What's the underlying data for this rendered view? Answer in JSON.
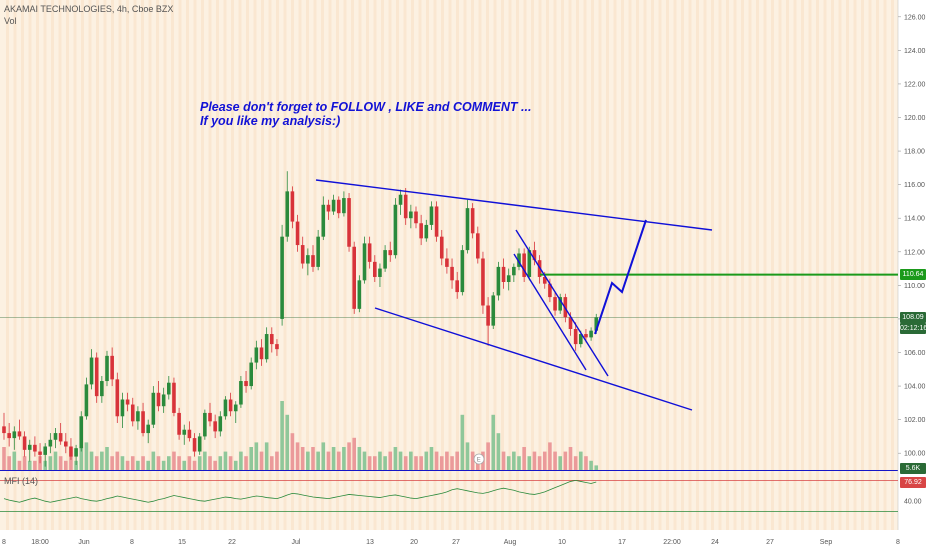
{
  "header": {
    "title": "AKAMAI TECHNOLOGIES, 4h, Cboe BZX",
    "vol_label": "Vol"
  },
  "annotation": {
    "line1": "Please don't forget  to FOLLOW , LIKE and COMMENT ...",
    "line2": "If you like my analysis:)"
  },
  "mfi": {
    "label": "MFI (14)",
    "value": "76.92",
    "level_label": "40.00"
  },
  "price_axis": {
    "ticks": [
      "126.00",
      "124.00",
      "122.00",
      "120.00",
      "118.00",
      "116.00",
      "114.00",
      "112.00",
      "110.00",
      "108.00",
      "106.00",
      "104.00",
      "102.00",
      "100.00"
    ]
  },
  "badges": {
    "resistance": {
      "text": "110.64",
      "color": "#1b9a1b"
    },
    "current": {
      "text": "108.09",
      "color": "#2a6a36"
    },
    "countdown": {
      "text": "02:12:16",
      "color": "#2a6a36"
    },
    "volume": {
      "text": "5.6K",
      "color": "#2a6a36"
    }
  },
  "time_axis": {
    "labels": [
      "8",
      "18:00",
      "Jun",
      "8",
      "15",
      "22",
      "Jul",
      "13",
      "20",
      "27",
      "Aug",
      "10",
      "17",
      "22:00",
      "24",
      "27",
      "Sep",
      "8"
    ]
  },
  "colors": {
    "up": "#2a8a3c",
    "down": "#d8333a",
    "trend": "#1010d8",
    "level": "#1b9a1b",
    "vol_up": "#8fc79a",
    "vol_down": "#eb9a9a"
  },
  "chart_data": {
    "type": "candlestick",
    "ylim": [
      99,
      127
    ],
    "resistance_level": 110.64,
    "current_price": 108.09,
    "candles": [
      [
        101.6,
        102.4,
        100.8,
        101.2
      ],
      [
        101.2,
        101.8,
        100.4,
        100.9
      ],
      [
        100.9,
        101.6,
        100.2,
        101.3
      ],
      [
        101.3,
        102.0,
        100.8,
        101.0
      ],
      [
        101.0,
        101.3,
        99.8,
        100.2
      ],
      [
        100.2,
        100.8,
        99.5,
        100.5
      ],
      [
        100.5,
        101.0,
        99.8,
        100.1
      ],
      [
        100.1,
        100.6,
        99.4,
        99.9
      ],
      [
        99.9,
        100.6,
        99.2,
        100.4
      ],
      [
        100.4,
        101.2,
        100.0,
        100.8
      ],
      [
        100.8,
        101.5,
        100.3,
        101.2
      ],
      [
        101.2,
        101.8,
        100.5,
        100.7
      ],
      [
        100.7,
        101.2,
        100.0,
        100.4
      ],
      [
        100.4,
        100.9,
        99.6,
        99.8
      ],
      [
        99.8,
        100.5,
        99.3,
        100.3
      ],
      [
        100.3,
        102.5,
        100.1,
        102.2
      ],
      [
        102.2,
        104.5,
        102.0,
        104.1
      ],
      [
        104.1,
        106.2,
        103.8,
        105.7
      ],
      [
        105.7,
        106.0,
        103.0,
        103.4
      ],
      [
        103.4,
        104.6,
        103.0,
        104.3
      ],
      [
        104.3,
        106.1,
        104.0,
        105.8
      ],
      [
        105.8,
        106.3,
        104.0,
        104.4
      ],
      [
        104.4,
        104.8,
        101.8,
        102.2
      ],
      [
        102.2,
        103.6,
        101.5,
        103.2
      ],
      [
        103.2,
        103.6,
        102.5,
        102.9
      ],
      [
        102.9,
        103.3,
        101.6,
        101.9
      ],
      [
        101.9,
        102.8,
        101.4,
        102.5
      ],
      [
        102.5,
        103.0,
        101.0,
        101.2
      ],
      [
        101.2,
        102.0,
        100.6,
        101.7
      ],
      [
        101.7,
        104.0,
        101.5,
        103.6
      ],
      [
        103.6,
        104.3,
        102.5,
        102.8
      ],
      [
        102.8,
        103.9,
        102.4,
        103.5
      ],
      [
        103.5,
        104.6,
        103.2,
        104.2
      ],
      [
        104.2,
        104.5,
        102.2,
        102.4
      ],
      [
        102.4,
        102.7,
        100.8,
        101.1
      ],
      [
        101.1,
        101.7,
        100.5,
        101.4
      ],
      [
        101.4,
        101.9,
        100.7,
        100.9
      ],
      [
        100.9,
        101.2,
        99.8,
        100.1
      ],
      [
        100.1,
        101.2,
        99.9,
        101.0
      ],
      [
        101.0,
        102.6,
        100.8,
        102.4
      ],
      [
        102.4,
        103.0,
        101.6,
        101.9
      ],
      [
        101.9,
        102.3,
        100.9,
        101.3
      ],
      [
        101.3,
        102.5,
        101.0,
        102.2
      ],
      [
        102.2,
        103.4,
        102.0,
        103.2
      ],
      [
        103.2,
        103.6,
        102.2,
        102.5
      ],
      [
        102.5,
        103.1,
        101.8,
        102.9
      ],
      [
        102.9,
        104.6,
        102.7,
        104.3
      ],
      [
        104.3,
        104.9,
        103.6,
        104.0
      ],
      [
        104.0,
        105.7,
        103.8,
        105.4
      ],
      [
        105.4,
        106.7,
        105.0,
        106.3
      ],
      [
        106.3,
        106.8,
        105.2,
        105.6
      ],
      [
        105.6,
        107.5,
        105.4,
        107.1
      ],
      [
        107.1,
        107.5,
        106.0,
        106.5
      ],
      [
        106.5,
        106.8,
        105.8,
        106.2
      ],
      [
        108.0,
        113.6,
        107.6,
        112.9
      ],
      [
        112.9,
        116.8,
        112.6,
        115.6
      ],
      [
        115.6,
        115.9,
        113.4,
        113.8
      ],
      [
        113.8,
        114.2,
        112.0,
        112.4
      ],
      [
        112.4,
        112.9,
        111.0,
        111.3
      ],
      [
        111.3,
        112.2,
        110.6,
        111.8
      ],
      [
        111.8,
        112.4,
        110.8,
        111.1
      ],
      [
        111.1,
        113.3,
        110.9,
        112.9
      ],
      [
        112.9,
        115.3,
        112.7,
        114.8
      ],
      [
        114.8,
        115.1,
        113.9,
        114.4
      ],
      [
        114.4,
        115.4,
        114.2,
        115.1
      ],
      [
        115.1,
        115.3,
        114.0,
        114.3
      ],
      [
        114.3,
        115.6,
        114.1,
        115.2
      ],
      [
        115.2,
        115.5,
        112.0,
        112.3
      ],
      [
        112.3,
        112.6,
        108.3,
        108.6
      ],
      [
        108.6,
        110.6,
        108.4,
        110.3
      ],
      [
        110.3,
        112.9,
        110.1,
        112.5
      ],
      [
        112.5,
        112.9,
        111.0,
        111.4
      ],
      [
        111.4,
        111.8,
        110.2,
        110.5
      ],
      [
        110.5,
        111.3,
        109.9,
        111.0
      ],
      [
        111.0,
        112.4,
        110.8,
        112.1
      ],
      [
        112.1,
        112.6,
        111.4,
        111.8
      ],
      [
        111.8,
        115.2,
        111.6,
        114.8
      ],
      [
        114.8,
        115.7,
        114.2,
        115.4
      ],
      [
        115.4,
        115.8,
        113.6,
        114.0
      ],
      [
        114.0,
        114.8,
        113.4,
        114.4
      ],
      [
        114.4,
        114.7,
        113.4,
        113.7
      ],
      [
        113.7,
        114.2,
        112.4,
        112.8
      ],
      [
        112.8,
        113.9,
        112.6,
        113.6
      ],
      [
        113.6,
        115.0,
        113.3,
        114.7
      ],
      [
        114.7,
        115.0,
        112.6,
        112.9
      ],
      [
        112.9,
        113.3,
        111.2,
        111.6
      ],
      [
        111.6,
        112.2,
        110.7,
        111.1
      ],
      [
        111.1,
        111.6,
        109.8,
        110.3
      ],
      [
        110.3,
        110.8,
        109.2,
        109.6
      ],
      [
        109.6,
        112.4,
        109.4,
        112.1
      ],
      [
        112.1,
        115.1,
        111.9,
        114.6
      ],
      [
        114.6,
        114.9,
        112.8,
        113.1
      ],
      [
        113.1,
        113.5,
        111.3,
        111.6
      ],
      [
        111.6,
        112.0,
        108.3,
        108.8
      ],
      [
        108.8,
        109.3,
        106.4,
        107.6
      ],
      [
        107.6,
        109.6,
        107.4,
        109.4
      ],
      [
        109.4,
        111.4,
        109.1,
        111.1
      ],
      [
        111.1,
        111.6,
        109.8,
        110.2
      ],
      [
        110.2,
        111.0,
        109.7,
        110.6
      ],
      [
        110.6,
        111.3,
        110.2,
        111.1
      ],
      [
        111.1,
        112.2,
        110.9,
        111.9
      ],
      [
        111.9,
        112.2,
        110.2,
        110.5
      ],
      [
        110.5,
        112.3,
        110.3,
        112.1
      ],
      [
        112.1,
        112.6,
        111.2,
        111.5
      ],
      [
        111.5,
        111.8,
        110.1,
        110.5
      ],
      [
        110.5,
        110.8,
        109.8,
        110.1
      ],
      [
        110.1,
        110.4,
        109.0,
        109.3
      ],
      [
        109.3,
        109.6,
        108.2,
        108.5
      ],
      [
        108.5,
        109.5,
        108.3,
        109.3
      ],
      [
        109.3,
        109.5,
        107.8,
        108.1
      ],
      [
        108.1,
        108.4,
        107.0,
        107.4
      ],
      [
        107.4,
        107.8,
        106.1,
        106.5
      ],
      [
        106.5,
        107.3,
        106.3,
        107.1
      ],
      [
        107.1,
        107.4,
        106.6,
        106.9
      ],
      [
        106.9,
        107.5,
        106.7,
        107.3
      ],
      [
        107.3,
        108.3,
        107.1,
        108.09
      ]
    ],
    "volume": [
      5,
      3,
      4,
      2,
      3,
      2,
      2,
      3,
      2,
      3,
      4,
      3,
      2,
      3,
      2,
      5,
      6,
      4,
      3,
      4,
      5,
      3,
      4,
      3,
      2,
      3,
      2,
      3,
      2,
      4,
      3,
      2,
      3,
      4,
      3,
      2,
      3,
      2,
      3,
      4,
      3,
      2,
      3,
      4,
      3,
      2,
      4,
      3,
      5,
      6,
      4,
      6,
      3,
      4,
      15,
      12,
      8,
      6,
      5,
      4,
      5,
      4,
      6,
      4,
      5,
      4,
      5,
      6,
      7,
      5,
      4,
      3,
      3,
      4,
      3,
      4,
      5,
      4,
      3,
      4,
      3,
      3,
      4,
      5,
      4,
      3,
      4,
      3,
      4,
      12,
      6,
      4,
      3,
      4,
      6,
      12,
      8,
      4,
      3,
      4,
      3,
      5,
      3,
      4,
      3,
      4,
      6,
      4,
      3,
      4,
      5,
      3,
      4,
      3,
      2,
      1
    ],
    "mfi": [
      45,
      42,
      40,
      38,
      41,
      44,
      46,
      43,
      40,
      38,
      40,
      42,
      44,
      46,
      48,
      45,
      43,
      41,
      40,
      42,
      45,
      47,
      50,
      48,
      46,
      44,
      42,
      40,
      38,
      40,
      43,
      45,
      48,
      51,
      49,
      47,
      45,
      43,
      41,
      40,
      42,
      44,
      46,
      48,
      47,
      45,
      44,
      46,
      48,
      50,
      49,
      47,
      46,
      45,
      48,
      52,
      55,
      54,
      52,
      50,
      48,
      47,
      46,
      45,
      47,
      49,
      51,
      53,
      52,
      51,
      50,
      49,
      48,
      47,
      49,
      51,
      52,
      50,
      48,
      46,
      45,
      47,
      49,
      51,
      53,
      55,
      58,
      62,
      64,
      62,
      60,
      58,
      56,
      55,
      57,
      60,
      63,
      65,
      63,
      61,
      58,
      56,
      54,
      53,
      55,
      58,
      62,
      66,
      70,
      74,
      78,
      80,
      78,
      76,
      74,
      76.92
    ]
  }
}
